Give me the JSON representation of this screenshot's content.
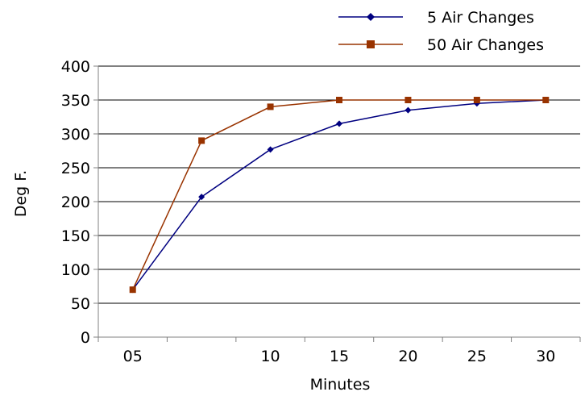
{
  "chart_data": {
    "type": "line",
    "title": "",
    "xlabel": "Minutes",
    "ylabel": "Deg F.",
    "x_tick_labels": [
      "05",
      "",
      "10",
      "15",
      "20",
      "25",
      "30"
    ],
    "ylim": [
      0,
      400
    ],
    "y_ticks": [
      0,
      50,
      100,
      150,
      200,
      250,
      300,
      350,
      400
    ],
    "grid": true,
    "legend_position": "top-right",
    "series": [
      {
        "name": "5 Air Changes",
        "color": "#000080",
        "marker": "diamond",
        "values": [
          70,
          207,
          277,
          315,
          335,
          345,
          350
        ]
      },
      {
        "name": "50 Air Changes",
        "color": "#993300",
        "marker": "square",
        "values": [
          70,
          290,
          340,
          350,
          350,
          350,
          350
        ]
      }
    ]
  }
}
